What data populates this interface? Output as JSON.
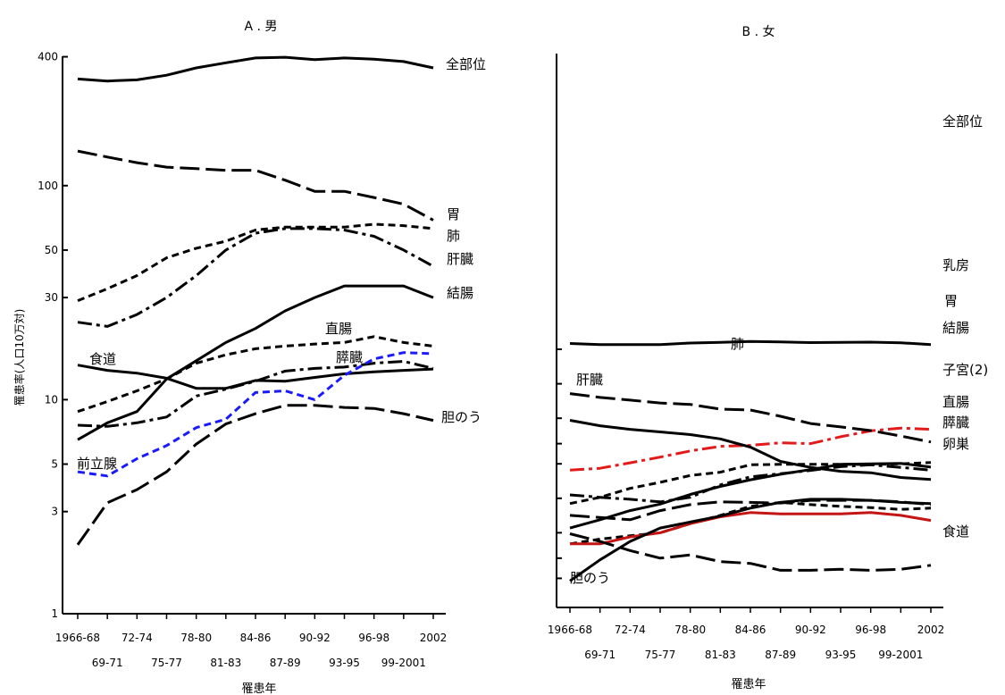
{
  "chart_data": [
    {
      "type": "line",
      "title": "A . 男",
      "xlabel": "罹患年",
      "ylabel": "罹患率(人口10万対)",
      "yscale": "log",
      "ylim": [
        1,
        400
      ],
      "yticks": [
        1,
        3,
        5,
        10,
        30,
        50,
        100,
        400
      ],
      "xtick_row1": [
        "1966-68",
        "72-74",
        "78-80",
        "84-86",
        "90-92",
        "96-98",
        "2002"
      ],
      "xtick_row2": [
        "69-71",
        "75-77",
        "81-83",
        "87-89",
        "93-95",
        "99-2001"
      ],
      "categories": [
        "1966-68",
        "69-71",
        "72-74",
        "75-77",
        "78-80",
        "81-83",
        "84-86",
        "87-89",
        "90-92",
        "93-95",
        "96-98",
        "99-2001",
        "2002"
      ],
      "series": [
        {
          "name": "全部位",
          "style": "solid",
          "color": "#000000",
          "values": [
            315,
            308,
            312,
            328,
            355,
            375,
            395,
            398,
            388,
            395,
            390,
            380,
            355
          ]
        },
        {
          "name": "胃",
          "style": "longdash",
          "color": "#000000",
          "values": [
            145,
            136,
            128,
            122,
            120,
            118,
            118,
            106,
            94,
            94,
            88,
            82,
            69
          ]
        },
        {
          "name": "肺",
          "style": "shortdash",
          "color": "#000000",
          "values": [
            29,
            33,
            38,
            46,
            51,
            55,
            62,
            64,
            64,
            64,
            66,
            65,
            63
          ]
        },
        {
          "name": "肝臓",
          "style": "dashdot",
          "color": "#000000",
          "values": [
            23,
            22,
            25,
            30,
            38,
            50,
            60,
            63,
            63,
            62,
            58,
            50,
            42
          ]
        },
        {
          "name": "結腸",
          "style": "solid",
          "color": "#000000",
          "values": [
            6.5,
            7.8,
            8.8,
            12.5,
            15.2,
            18.5,
            21.5,
            26,
            30,
            34,
            34,
            34,
            30
          ]
        },
        {
          "name": "直腸",
          "style": "shortdash",
          "color": "#000000",
          "values": [
            8.8,
            9.8,
            11,
            12.5,
            14.8,
            16.2,
            17.3,
            17.8,
            18.2,
            18.5,
            19.7,
            18.5,
            17.8
          ]
        },
        {
          "name": "食道",
          "style": "solid",
          "color": "#000000",
          "values": [
            14.5,
            13.7,
            13.3,
            12.6,
            11.3,
            11.3,
            12.3,
            12.2,
            12.7,
            13.2,
            13.5,
            13.7,
            13.9
          ]
        },
        {
          "name": "膵臓",
          "style": "dashdot",
          "color": "#000000",
          "values": [
            7.6,
            7.5,
            7.8,
            8.3,
            10.4,
            11.2,
            12.2,
            13.6,
            14,
            14.2,
            14.8,
            15.1,
            14
          ]
        },
        {
          "name": "前立腺",
          "style": "shortdash",
          "color": "#1a1aff",
          "values": [
            4.6,
            4.4,
            5.3,
            6.1,
            7.4,
            8.1,
            10.8,
            11,
            10,
            13,
            15.5,
            16.6,
            16.4
          ]
        },
        {
          "name": "胆のう",
          "style": "longdash",
          "color": "#000000",
          "values": [
            2.1,
            3.3,
            3.8,
            4.6,
            6.2,
            7.7,
            8.6,
            9.4,
            9.4,
            9.2,
            9.1,
            8.6,
            8
          ]
        }
      ]
    },
    {
      "type": "line",
      "title": "B . 女",
      "xlabel": "罹患年",
      "yscale": "log",
      "xtick_row1": [
        "1966-68",
        "72-74",
        "78-80",
        "84-86",
        "90-92",
        "96-98",
        "2002"
      ],
      "xtick_row2": [
        "69-71",
        "75-77",
        "81-83",
        "87-89",
        "93-95",
        "99-2001"
      ],
      "categories": [
        "1966-68",
        "69-71",
        "72-74",
        "75-77",
        "78-80",
        "81-83",
        "84-86",
        "87-89",
        "90-92",
        "93-95",
        "96-98",
        "99-2001",
        "2002"
      ],
      "series": [
        {
          "name": "全部位",
          "style": "solid",
          "color": "#000000",
          "values": [
            225,
            220,
            220,
            220,
            227,
            230,
            234,
            232,
            229,
            230,
            231,
            228,
            220
          ]
        },
        {
          "name": "乳房",
          "style": "dashdot",
          "color": "#e21a1a",
          "values": [
            17.6,
            18.3,
            20.4,
            22.9,
            25.9,
            28.4,
            29,
            30.5,
            30,
            34.5,
            38.8,
            41,
            40
          ]
        },
        {
          "name": "胃",
          "style": "longdash",
          "color": "#000000",
          "values": [
            82,
            76,
            72,
            68,
            66,
            60,
            59,
            52,
            45,
            42,
            39,
            35,
            31
          ]
        },
        {
          "name": "結腸",
          "style": "solid",
          "color": "#000000",
          "values": [
            5.5,
            6.5,
            7.8,
            8.9,
            10.8,
            12.7,
            14.5,
            16.2,
            17.8,
            19.8,
            20,
            20.2,
            18.7
          ]
        },
        {
          "name": "子宮(2)",
          "style": "solid",
          "color": "#000000",
          "values": [
            48,
            43,
            40,
            38,
            36,
            33,
            28,
            21,
            18.6,
            17.2,
            16.7,
            15.2,
            14.6
          ]
        },
        {
          "name": "肺",
          "style": "shortdash",
          "color": "#000000",
          "values": [
            9,
            10.2,
            12.2,
            13.8,
            15.8,
            16.9,
            19.6,
            19.8,
            19.8,
            19.8,
            19.7,
            20,
            20.5
          ]
        },
        {
          "name": "肝臓",
          "style": "dashdot",
          "color": "#000000",
          "values": [
            10.7,
            10.2,
            9.8,
            9.3,
            10.2,
            13.1,
            15.4,
            16.4,
            17.5,
            18.9,
            19.6,
            18.6,
            17.6
          ]
        },
        {
          "name": "直腸",
          "style": "longdash",
          "color": "#000000",
          "values": [
            7.1,
            6.8,
            6.5,
            7.8,
            8.8,
            9.3,
            9.2,
            9.1,
            9.6,
            9.6,
            9.6,
            9.3,
            8.8
          ]
        },
        {
          "name": "膵臓",
          "style": "shortdash",
          "color": "#000000",
          "values": [
            4,
            4.4,
            4.7,
            5,
            6,
            7.1,
            8.5,
            9.2,
            8.8,
            8.5,
            8.3,
            8,
            8.2
          ]
        },
        {
          "name": "卵巣",
          "style": "solid",
          "color": "#c41414",
          "values": [
            4,
            4,
            4.6,
            5,
            6,
            6.9,
            7.5,
            7.3,
            7.3,
            7.3,
            7.5,
            7.1,
            6.4
          ]
        },
        {
          "name": "食道",
          "style": "longdash",
          "color": "#000000",
          "values": [
            4.9,
            4.2,
            3.5,
            3,
            3.2,
            2.8,
            2.7,
            2.35,
            2.35,
            2.4,
            2.35,
            2.4,
            2.6
          ]
        },
        {
          "name": "胆のう",
          "style": "solid",
          "color": "#000000",
          "values": [
            1.9,
            2.9,
            4.2,
            5.5,
            6.2,
            7,
            8.2,
            9.2,
            9.8,
            9.8,
            9.6,
            9.2,
            9
          ]
        }
      ]
    }
  ]
}
